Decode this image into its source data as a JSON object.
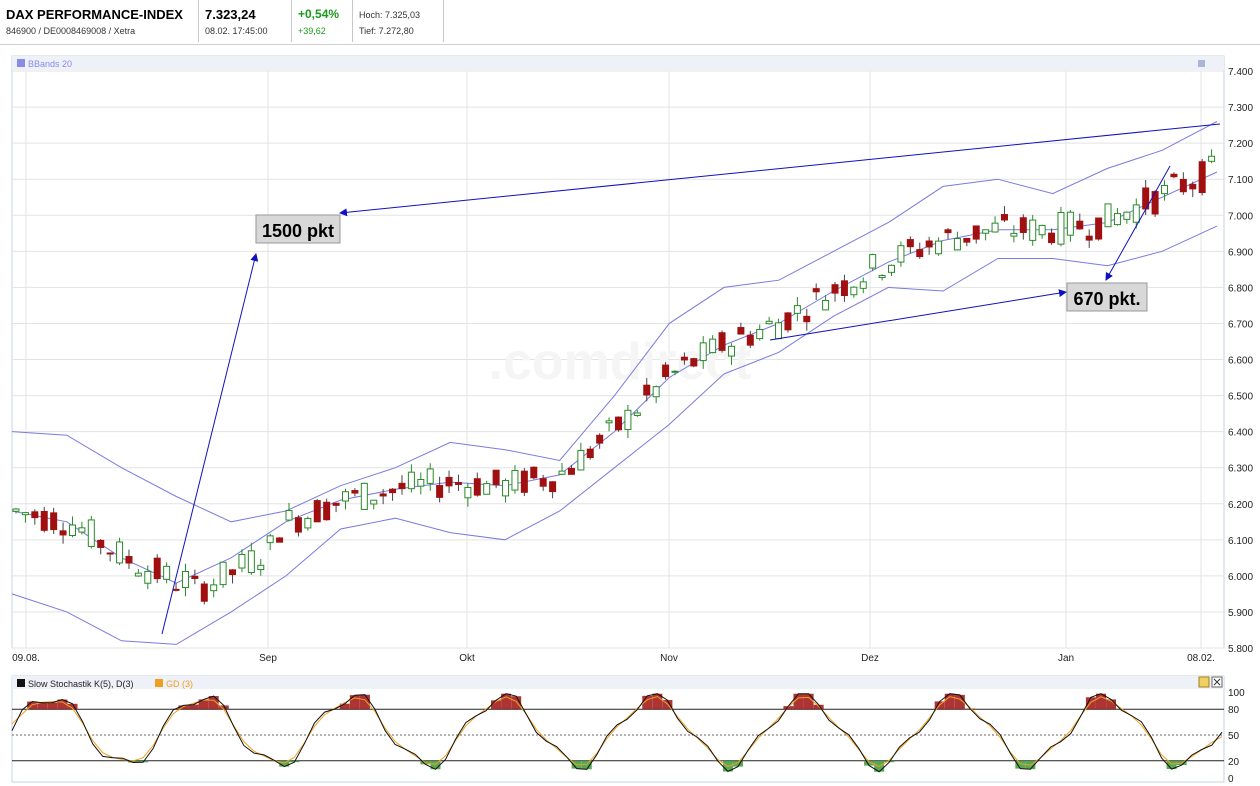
{
  "header": {
    "name": "DAX PERFORMANCE-INDEX",
    "ids": "846900 / DE0008469008 / Xetra",
    "price": "7.323,24",
    "datetime": "08.02. 17:45:00",
    "change_pct": "+0,54%",
    "change_abs": "+39,62",
    "high": "Hoch: 7.325,03",
    "low": "Tief: 7.272,80"
  },
  "main_panel": {
    "indicator_label": "BBands 20",
    "watermark": ".comdirect",
    "annotation_1": "1500 pkt",
    "annotation_2": "670 pkt."
  },
  "stoch_panel": {
    "label_k": "Slow Stochastik K(5), D(3)",
    "label_d": "GD (3)",
    "y_ticks": [
      "100",
      "80",
      "50",
      "20",
      "0"
    ]
  },
  "colors": {
    "up": "#2a8a2a",
    "down": "#a01010",
    "band": "#7a7ae0",
    "arrow": "#1010c0",
    "grid": "#e3e3e3"
  },
  "chart_data": {
    "type": "candlestick",
    "title": "DAX PERFORMANCE-INDEX",
    "x_ticks": [
      "09.08.",
      "Sep",
      "Okt",
      "Nov",
      "Dez",
      "Jan",
      "08.02."
    ],
    "y_ticks": [
      "7.400",
      "7.300",
      "7.200",
      "7.100",
      "7.000",
      "6.900",
      "6.800",
      "6.700",
      "6.600",
      "6.500",
      "6.400",
      "6.300",
      "6.200",
      "6.100",
      "6.000",
      "5.900",
      "5.800"
    ],
    "ylim": [
      5800,
      7400
    ],
    "series": [
      {
        "name": "BBands 20",
        "points_note": "upper/middle/lower bands",
        "upper": [
          6400,
          6390,
          6300,
          6220,
          6150,
          6180,
          6250,
          6300,
          6370,
          6350,
          6320,
          6500,
          6700,
          6800,
          6820,
          6900,
          6980,
          7080,
          7100,
          7060,
          7130,
          7180,
          7260
        ],
        "middle": [
          6180,
          6150,
          6050,
          5980,
          6050,
          6150,
          6210,
          6240,
          6260,
          6250,
          6280,
          6400,
          6550,
          6640,
          6700,
          6790,
          6870,
          6930,
          6960,
          6960,
          6980,
          7050,
          7120
        ],
        "lower": [
          5950,
          5900,
          5820,
          5810,
          5900,
          6000,
          6130,
          6160,
          6120,
          6100,
          6180,
          6300,
          6420,
          6560,
          6620,
          6720,
          6800,
          6790,
          6880,
          6880,
          6860,
          6900,
          6970
        ]
      }
    ],
    "close_last": 7323.24,
    "annotations": [
      {
        "text": "1500 pkt",
        "from": 5830,
        "to": 7323
      },
      {
        "text": "670 pkt.",
        "from": 6650,
        "to": 7323
      }
    ]
  }
}
